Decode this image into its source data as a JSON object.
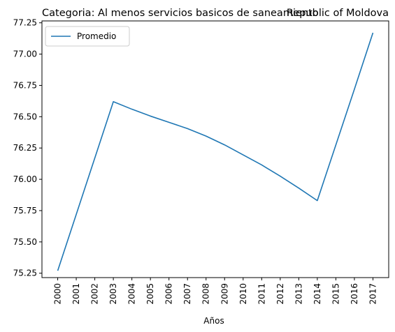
{
  "chart_data": {
    "type": "line",
    "title_left": "Categoria: Al menos servicios basicos de saneamiento",
    "title_right": "Republic of Moldova",
    "xlabel": "Años",
    "ylabel": "",
    "categories": [
      "2000",
      "2001",
      "2002",
      "2003",
      "2004",
      "2005",
      "2006",
      "2007",
      "2008",
      "2009",
      "2010",
      "2011",
      "2012",
      "2013",
      "2014",
      "2015",
      "2016",
      "2017"
    ],
    "series": [
      {
        "name": "Promedio",
        "color": "#1f77b4",
        "values": [
          75.27,
          75.72,
          76.17,
          76.62,
          76.56,
          76.505,
          76.455,
          76.405,
          76.345,
          76.275,
          76.195,
          76.115,
          76.025,
          75.93,
          75.83,
          76.275,
          76.72,
          77.17
        ]
      }
    ],
    "ylim": [
      75.215,
      77.265
    ],
    "yticks": [
      75.25,
      75.5,
      75.75,
      76.0,
      76.25,
      76.5,
      76.75,
      77.0,
      77.25
    ],
    "ytick_labels": [
      "75.25",
      "75.50",
      "75.75",
      "76.00",
      "76.25",
      "76.50",
      "76.75",
      "77.00",
      "77.25"
    ],
    "legend_position": "upper-left",
    "grid": false
  }
}
